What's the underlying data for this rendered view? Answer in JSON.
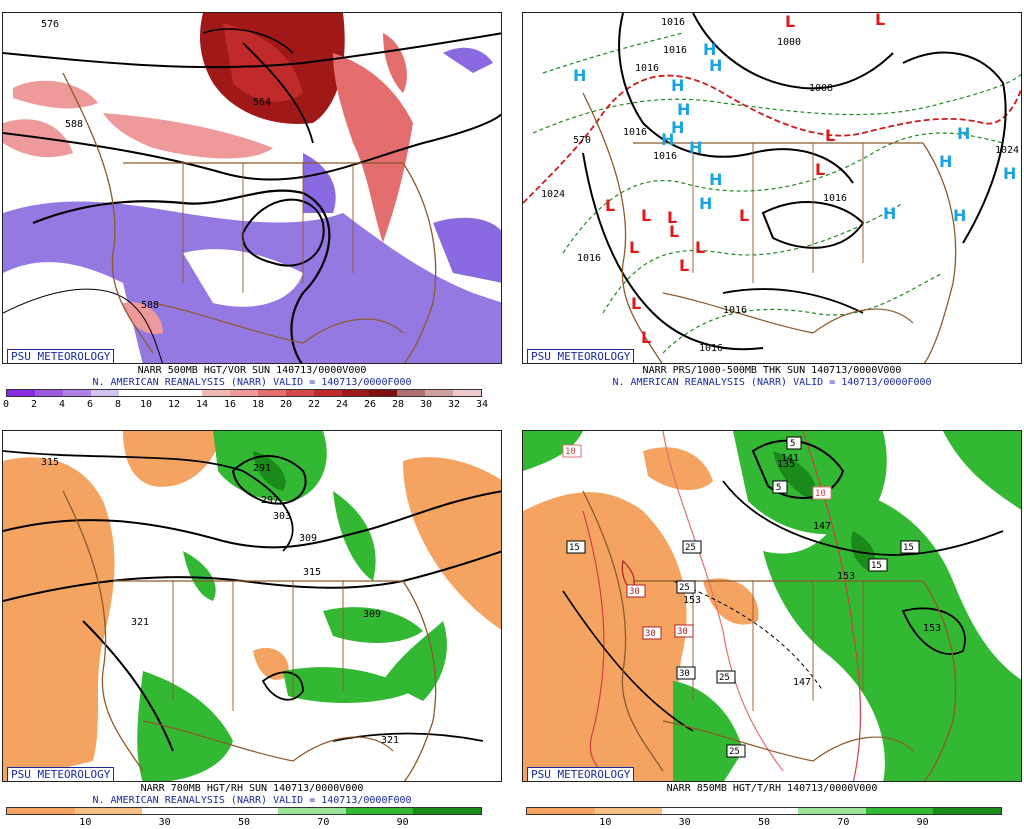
{
  "panels": [
    {
      "badge": "PSU METEOROLOGY",
      "line1": "NARR 500MB HGT/VOR SUN 140713/0000V000",
      "line2": "N. AMERICAN REANALYSIS (NARR) VALID = 140713/0000F000",
      "contour_labels": [
        "576",
        "588",
        "588",
        "564"
      ],
      "colorbar": {
        "colors": [
          "#8a2be2",
          "#9b59e0",
          "#b07fe6",
          "#d3c3f2",
          "#ffffff",
          "#ffffff",
          "#ffffff",
          "#f2b8b8",
          "#ee9a9a",
          "#e46e6e",
          "#d94848",
          "#c02a2a",
          "#a01818",
          "#801010",
          "#b07070",
          "#d0a0a0",
          "#f0c8d0"
        ],
        "ticks": [
          "0",
          "2",
          "4",
          "6",
          "8",
          "10",
          "12",
          "14",
          "16",
          "18",
          "20",
          "22",
          "24",
          "26",
          "28",
          "30",
          "32",
          "34"
        ]
      }
    },
    {
      "badge": "PSU METEOROLOGY",
      "line1": "NARR PRS/1000-500MB THK SUN 140713/0000V000",
      "line2": "N. AMERICAN REANALYSIS (NARR) VALID = 140713/0000F000",
      "contour_labels": [
        "1016",
        "1016",
        "1016",
        "1016",
        "1008",
        "1000",
        "1024",
        "1024",
        "1016",
        "1016",
        "1016",
        "1016",
        "1016",
        "570"
      ],
      "high_symbol": "H",
      "low_symbol": "L"
    },
    {
      "badge": "PSU METEOROLOGY",
      "line1": "NARR 700MB HGT/RH SUN 140713/0000V000",
      "line2": "N. AMERICAN REANALYSIS (NARR) VALID = 140713/0000F000",
      "contour_labels": [
        "315",
        "291",
        "297",
        "303",
        "309",
        "315",
        "321",
        "321",
        "309"
      ],
      "colorbar": {
        "colors": [
          "#f4a460",
          "#f7be85",
          "#ffffff",
          "#ffffff",
          "#9be39b",
          "#33b833",
          "#1a8a1a"
        ],
        "ticks": [
          "10",
          "30",
          "50",
          "70",
          "90"
        ]
      }
    },
    {
      "badge": "PSU METEOROLOGY",
      "line1": "NARR 850MB HGT/T/RH 140713/0000V000",
      "line2": "",
      "contour_labels": [
        "5",
        "5",
        "10",
        "10",
        "15",
        "15",
        "15",
        "25",
        "25",
        "30",
        "30",
        "30",
        "30",
        "25",
        "25",
        "141",
        "135",
        "147",
        "153",
        "153",
        "147",
        "153"
      ],
      "colorbar": {
        "colors": [
          "#f4a460",
          "#f7be85",
          "#ffffff",
          "#ffffff",
          "#9be39b",
          "#33b833",
          "#1a8a1a"
        ],
        "ticks": [
          "10",
          "30",
          "50",
          "70",
          "90"
        ]
      }
    }
  ]
}
